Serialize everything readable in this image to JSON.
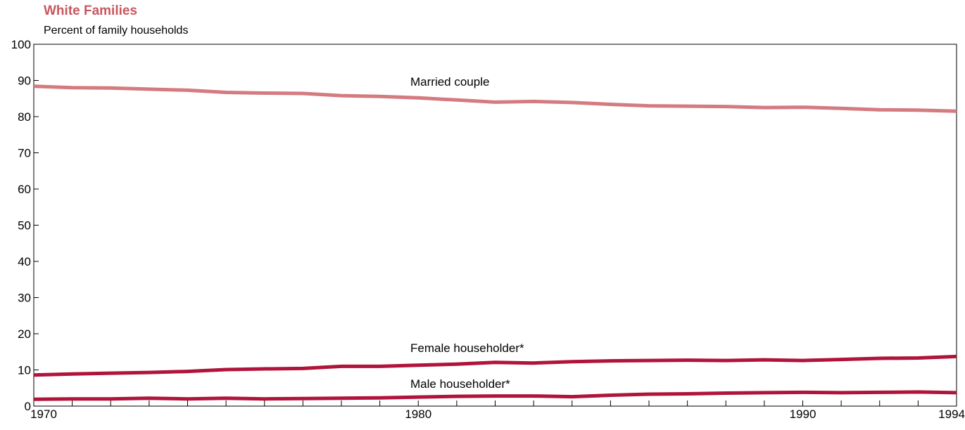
{
  "chart_data": {
    "type": "line",
    "title": "White Families",
    "ylabel": "Percent of family households",
    "xlabel": "",
    "xlim": [
      1970,
      1994
    ],
    "ylim": [
      0,
      100
    ],
    "x_tick_labels": [
      "1970",
      "1980",
      "1990",
      "1994"
    ],
    "x_tick_values": [
      1970,
      1980,
      1990,
      1994
    ],
    "y_ticks": [
      0,
      10,
      20,
      30,
      40,
      50,
      60,
      70,
      80,
      90,
      100
    ],
    "grid": false,
    "x": [
      1970,
      1971,
      1972,
      1973,
      1974,
      1975,
      1976,
      1977,
      1978,
      1979,
      1980,
      1981,
      1982,
      1983,
      1984,
      1985,
      1986,
      1987,
      1988,
      1989,
      1990,
      1991,
      1992,
      1993,
      1994
    ],
    "series": [
      {
        "name": "Married couple",
        "color": "#d47b80",
        "values": [
          88.4,
          88.0,
          87.9,
          87.6,
          87.3,
          86.7,
          86.5,
          86.4,
          85.8,
          85.6,
          85.2,
          84.6,
          84.0,
          84.2,
          83.9,
          83.4,
          83.0,
          82.9,
          82.8,
          82.5,
          82.6,
          82.3,
          81.9,
          81.8,
          81.5
        ]
      },
      {
        "name": "Female householder*",
        "color": "#b0143a",
        "values": [
          8.6,
          8.9,
          9.1,
          9.3,
          9.6,
          10.1,
          10.3,
          10.4,
          11.0,
          11.0,
          11.3,
          11.6,
          12.1,
          11.9,
          12.3,
          12.5,
          12.6,
          12.7,
          12.6,
          12.8,
          12.6,
          12.9,
          13.2,
          13.3,
          13.7
        ]
      },
      {
        "name": "Male householder*",
        "color": "#b0143a",
        "values": [
          1.9,
          2.0,
          2.0,
          2.2,
          2.0,
          2.2,
          2.0,
          2.1,
          2.2,
          2.3,
          2.5,
          2.7,
          2.8,
          2.8,
          2.6,
          3.0,
          3.3,
          3.4,
          3.6,
          3.7,
          3.8,
          3.7,
          3.8,
          3.9,
          3.7
        ]
      }
    ]
  }
}
